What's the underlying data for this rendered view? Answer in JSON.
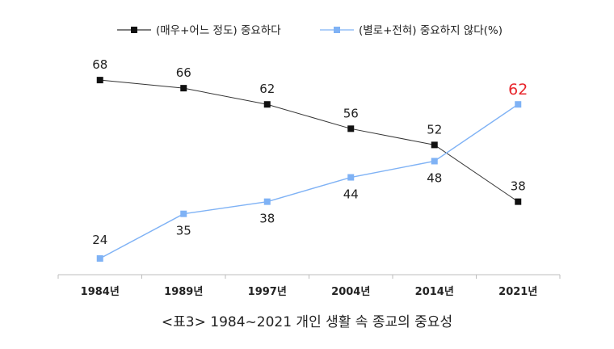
{
  "chart_data": {
    "type": "line",
    "categories": [
      "1984년",
      "1989년",
      "1997년",
      "2004년",
      "2014년",
      "2021년"
    ],
    "series": [
      {
        "name": "(매우+어느 정도) 중요하다",
        "values": [
          68,
          66,
          62,
          56,
          52,
          38
        ],
        "color": "#111111"
      },
      {
        "name": "(별로+전혀) 중요하지 않다(%)",
        "values": [
          24,
          35,
          38,
          44,
          48,
          62
        ],
        "color": "#7fb2f5"
      }
    ],
    "highlight": {
      "series": 1,
      "index": 5,
      "color": "#e8262c"
    },
    "ylim": [
      18,
      74
    ],
    "legend_position": "top",
    "grid": false
  },
  "caption": "<표3> 1984~2021 개인 생활 속 종교의 중요성"
}
